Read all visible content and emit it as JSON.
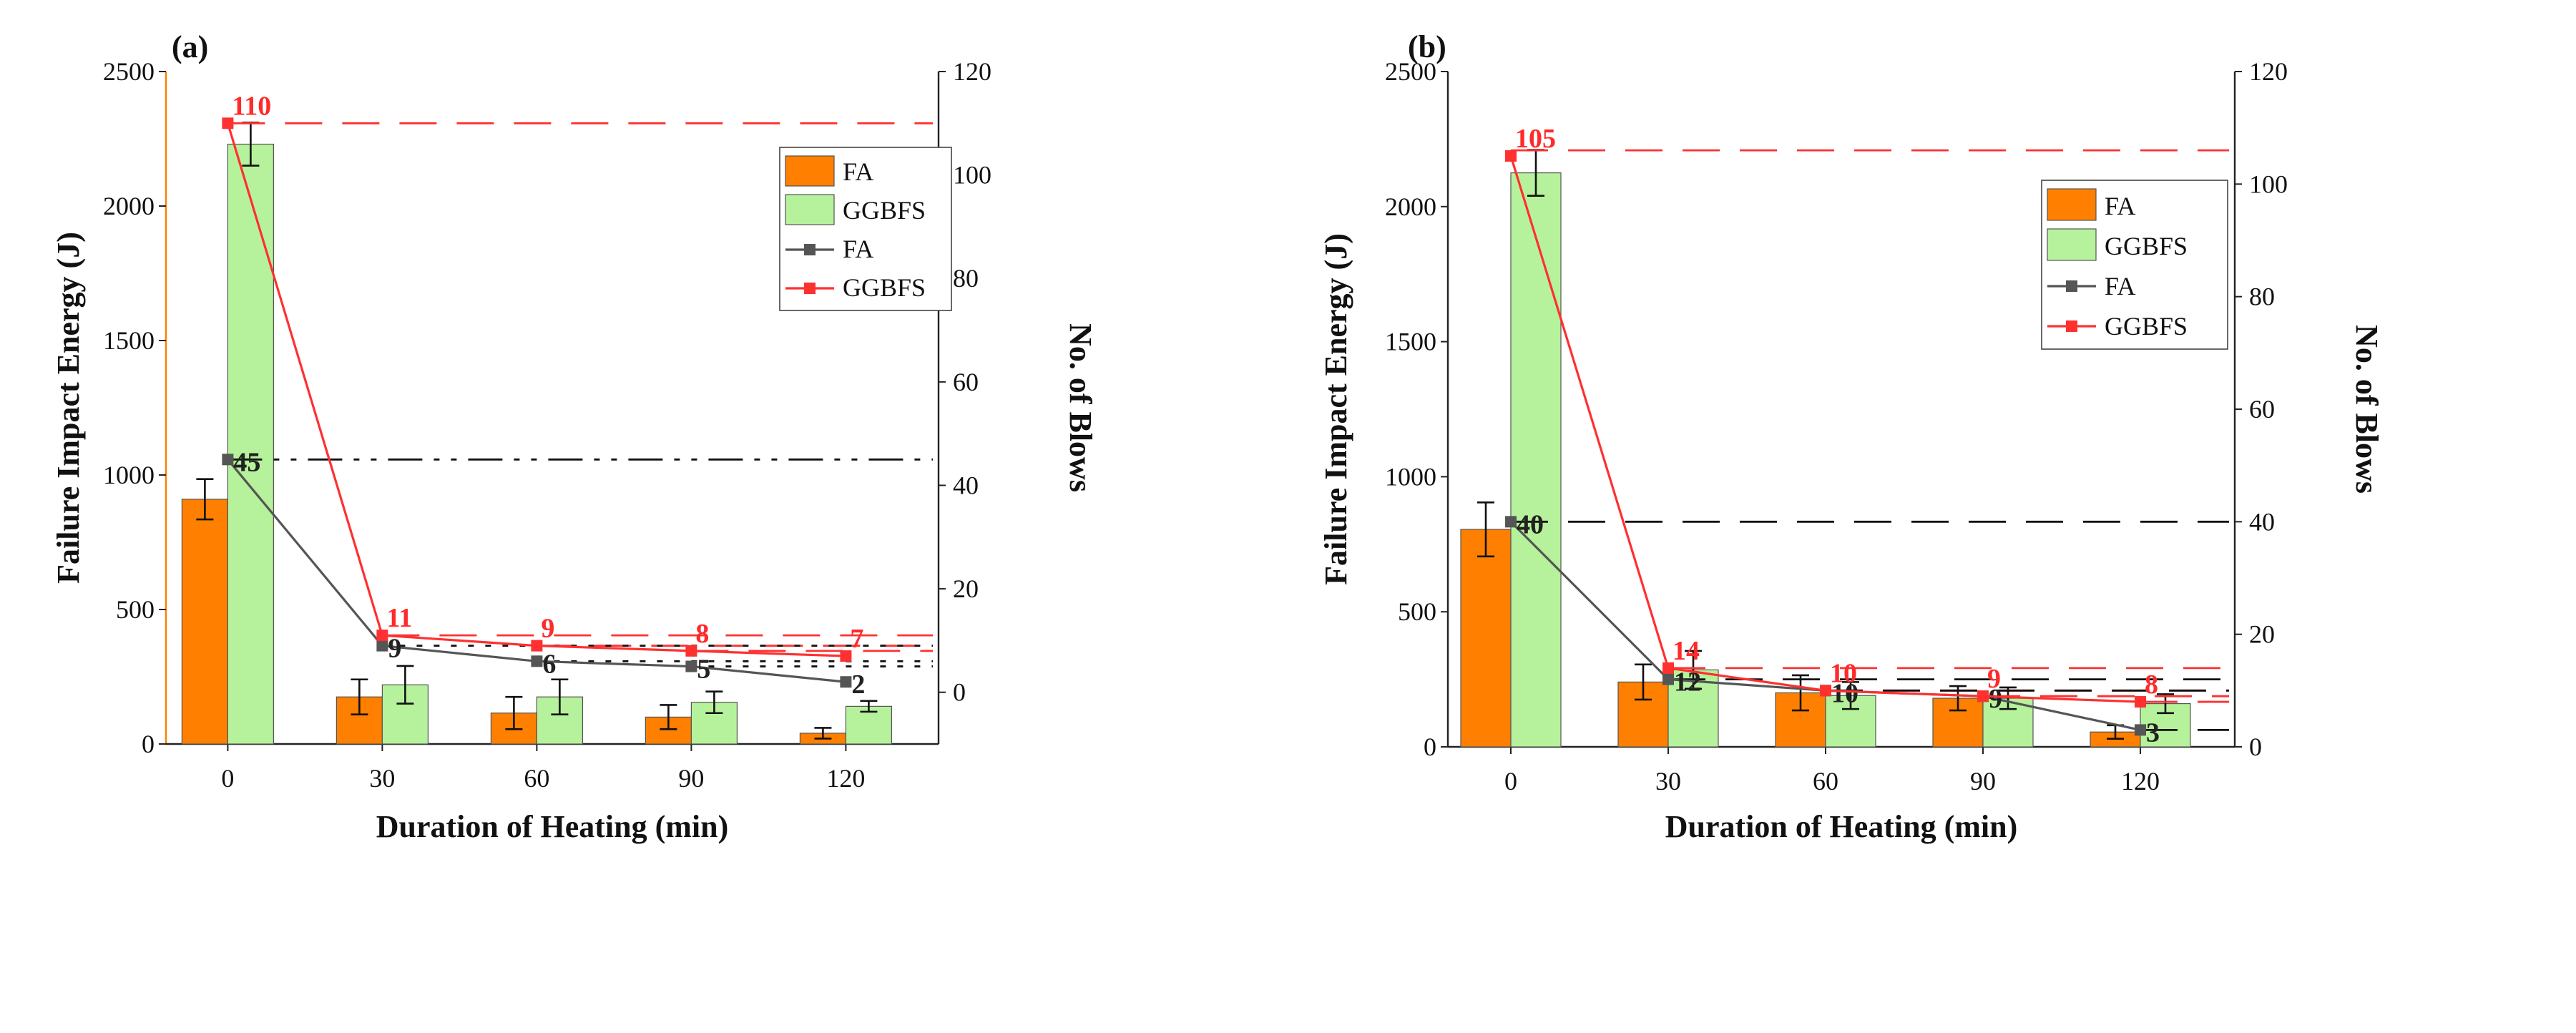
{
  "chart_data": [
    {
      "type": "bar",
      "panel_label": "(a)",
      "categories": [
        "0",
        "30",
        "60",
        "90",
        "120"
      ],
      "xlabel": "Duration of Heating (min)",
      "ylabel": "Failure Impact Energy (J)",
      "y2label": "No. of Blows",
      "ylim": [
        0,
        2500
      ],
      "y2lim": [
        -10,
        120
      ],
      "yticks": [
        "0",
        "500",
        "1000",
        "1500",
        "2000",
        "2500"
      ],
      "y2ticks": [
        "0",
        "20",
        "40",
        "60",
        "80",
        "100",
        "120"
      ],
      "legend_position": "top-right",
      "bar_series": [
        {
          "name": "FA",
          "values": [
            910,
            175,
            115,
            100,
            40
          ],
          "errors": [
            75,
            65,
            60,
            45,
            20
          ],
          "color": "#ff7f00"
        },
        {
          "name": "GGBFS",
          "values": [
            2230,
            220,
            175,
            155,
            140
          ],
          "errors": [
            80,
            70,
            65,
            40,
            20
          ],
          "color": "#b6f29b"
        }
      ],
      "line_series": [
        {
          "name": "FA",
          "values": [
            45,
            9,
            6,
            5,
            2
          ],
          "labels": [
            "45",
            "9",
            "6",
            "5",
            "2"
          ],
          "color": "#555555"
        },
        {
          "name": "GGBFS",
          "values": [
            110,
            11,
            9,
            8,
            7
          ],
          "labels": [
            "110",
            "11",
            "9",
            "8",
            "7"
          ],
          "color": "#ff3030"
        }
      ],
      "reference_lines": [
        {
          "value": 110,
          "color": "#ff3030",
          "dash": "dash",
          "from_index": 0
        },
        {
          "value": 45,
          "color": "#111111",
          "dash": "dashdotdot",
          "from_index": 0
        },
        {
          "value": 11,
          "color": "#ff3030",
          "dash": "dash",
          "from_index": 1
        },
        {
          "value": 9,
          "color": "#ff3030",
          "dash": "dash",
          "from_index": 2
        },
        {
          "value": 8,
          "color": "#ff3030",
          "dash": "dash",
          "from_index": 3
        },
        {
          "value": 9,
          "color": "#111111",
          "dash": "dot",
          "from_index": 1
        },
        {
          "value": 6,
          "color": "#111111",
          "dash": "dot",
          "from_index": 2
        },
        {
          "value": 5,
          "color": "#111111",
          "dash": "dot",
          "from_index": 3
        }
      ]
    },
    {
      "type": "bar",
      "panel_label": "(b)",
      "categories": [
        "0",
        "30",
        "60",
        "90",
        "120"
      ],
      "xlabel": "Duration of Heating (min)",
      "ylabel": "Failure Impact Energy (J)",
      "y2label": "No. of Blows",
      "ylim": [
        0,
        2500
      ],
      "y2lim": [
        0,
        120
      ],
      "yticks": [
        "0",
        "500",
        "1000",
        "1500",
        "2000",
        "2500"
      ],
      "y2ticks": [
        "0",
        "20",
        "40",
        "60",
        "80",
        "100",
        "120"
      ],
      "legend_position": "top-right",
      "bar_series": [
        {
          "name": "FA",
          "values": [
            805,
            240,
            200,
            180,
            55
          ],
          "errors": [
            100,
            65,
            65,
            45,
            25
          ],
          "color": "#ff7f00"
        },
        {
          "name": "GGBFS",
          "values": [
            2125,
            285,
            190,
            180,
            160
          ],
          "errors": [
            85,
            70,
            50,
            40,
            35
          ],
          "color": "#b6f29b"
        }
      ],
      "line_series": [
        {
          "name": "FA",
          "values": [
            40,
            12,
            10,
            9,
            3
          ],
          "labels": [
            "40",
            "12",
            "10",
            "9",
            "3"
          ],
          "color": "#555555"
        },
        {
          "name": "GGBFS",
          "values": [
            105,
            14,
            10,
            9,
            8
          ],
          "labels": [
            "105",
            "14",
            "10",
            "9",
            "8"
          ],
          "color": "#ff3030"
        }
      ],
      "reference_lines": [
        {
          "value": 106,
          "color": "#ff3030",
          "dash": "dash",
          "from_index": 0
        },
        {
          "value": 40,
          "color": "#111111",
          "dash": "dash",
          "from_index": 0
        },
        {
          "value": 14,
          "color": "#ff3030",
          "dash": "dash",
          "from_index": 1
        },
        {
          "value": 12,
          "color": "#111111",
          "dash": "dash",
          "from_index": 1
        },
        {
          "value": 10,
          "color": "#ff3030",
          "dash": "dash",
          "from_index": 2
        },
        {
          "value": 10,
          "color": "#111111",
          "dash": "dash",
          "from_index": 2
        },
        {
          "value": 9,
          "color": "#ff3030",
          "dash": "dash",
          "from_index": 3
        },
        {
          "value": 8,
          "color": "#ff3030",
          "dash": "dash",
          "from_index": 4
        },
        {
          "value": 3,
          "color": "#111111",
          "dash": "dash",
          "from_index": 4
        }
      ]
    }
  ]
}
